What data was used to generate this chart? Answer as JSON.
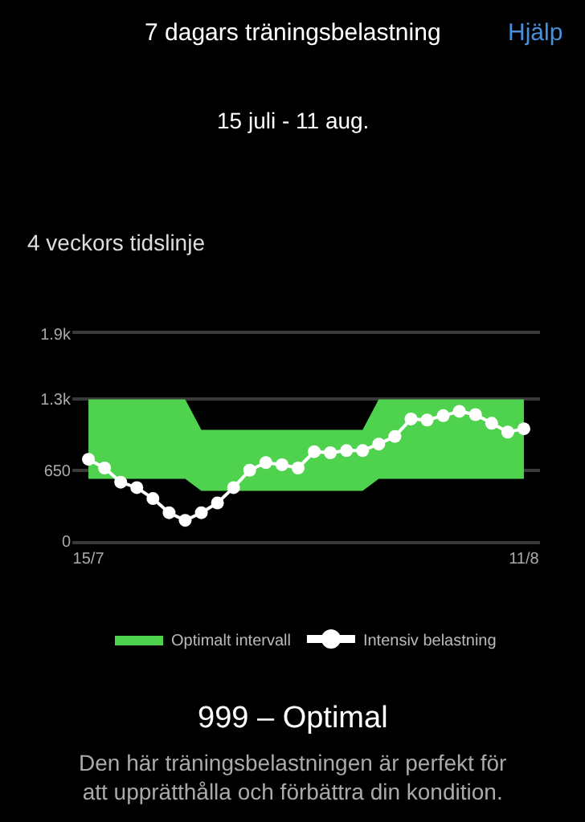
{
  "chart_data": {
    "type": "line",
    "title": "7 dagars träningsbelastning",
    "subtitle": "15 juli - 11 aug.",
    "annotations": [
      "Hjälp",
      "4 veckors tidslinje",
      "999 – Optimal",
      "Den här träningsbelastningen är perfekt för att upprätthålla och förbättra din kondition."
    ],
    "x": [
      "--07-15",
      "--07-16",
      "--07-17",
      "--07-18",
      "--07-19",
      "--07-20",
      "--07-21",
      "--07-22",
      "--07-23",
      "--07-24",
      "--07-25",
      "--07-26",
      "--07-27",
      "--07-28",
      "--07-29",
      "--07-30",
      "--07-31",
      "--08-01",
      "--08-02",
      "--08-03",
      "--08-04",
      "--08-05",
      "--08-06",
      "--08-07",
      "--08-08",
      "--08-09",
      "--08-10",
      "--08-11"
    ],
    "series": [
      {
        "name": "Optimalt intervall",
        "type": "area",
        "color": "#4fd34f",
        "values": [
          null,
          null,
          null,
          null,
          null,
          null,
          null,
          null,
          null,
          null,
          null,
          null,
          null,
          null,
          null,
          null,
          null,
          null,
          null,
          null,
          null,
          null,
          null,
          null,
          null,
          null,
          null,
          null
        ],
        "lower": [
          570,
          570,
          570,
          570,
          570,
          570,
          570,
          460,
          460,
          460,
          460,
          460,
          460,
          460,
          460,
          460,
          460,
          460,
          570,
          570,
          570,
          570,
          570,
          570,
          570,
          570,
          570,
          570
        ],
        "upper": [
          1300,
          1300,
          1300,
          1300,
          1300,
          1300,
          1300,
          1020,
          1020,
          1020,
          1020,
          1020,
          1020,
          1020,
          1020,
          1020,
          1020,
          1020,
          1300,
          1300,
          1300,
          1300,
          1300,
          1300,
          1300,
          1300,
          1300,
          1300
        ]
      },
      {
        "name": "Intensiv belastning",
        "color": "#ffffff",
        "marker": "circle",
        "values": [
          750,
          670,
          540,
          490,
          390,
          260,
          190,
          260,
          350,
          490,
          650,
          720,
          700,
          670,
          820,
          810,
          830,
          830,
          890,
          960,
          1120,
          1110,
          1150,
          1190,
          1160,
          1080,
          1000,
          1030
        ]
      }
    ],
    "xlim": [
      "--07-14",
      "--08-12"
    ],
    "xticks": [
      {
        "value": "--07-15",
        "label": "15/7"
      },
      {
        "value": "--08-11",
        "label": "11/8"
      }
    ],
    "ylim": [
      0,
      1900
    ],
    "yticks": [
      0,
      650,
      {
        "value": 1300,
        "label": "1.3k"
      },
      {
        "value": 1900,
        "label": "1.9k"
      }
    ],
    "grid": "y",
    "legend": "bottom"
  }
}
